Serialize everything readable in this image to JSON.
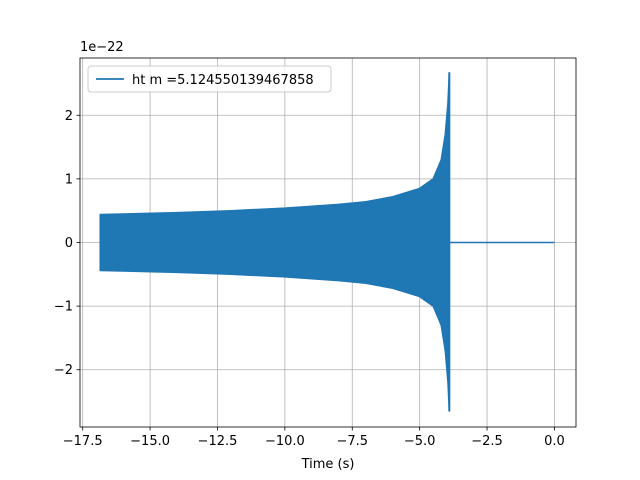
{
  "chart_data": {
    "type": "line",
    "title": "",
    "xlabel": "Time (s)",
    "ylabel": "",
    "y_offset_label": "1e−22",
    "xlim": [
      -17.6,
      0.8
    ],
    "ylim": [
      -2.9,
      2.9
    ],
    "x_ticks": [
      -17.5,
      -15.0,
      -12.5,
      -10.0,
      -7.5,
      -5.0,
      -2.5,
      0.0
    ],
    "x_tick_labels": [
      "−17.5",
      "−15.0",
      "−12.5",
      "−10.0",
      "−7.5",
      "−5.0",
      "−2.5",
      "0.0"
    ],
    "y_ticks": [
      -2,
      -1,
      0,
      1,
      2
    ],
    "y_tick_labels": [
      "−2",
      "−1",
      "0",
      "1",
      "2"
    ],
    "grid": true,
    "legend_position": "top-left",
    "series": [
      {
        "name": "ht m =5.124550139467858",
        "color": "#1f77b4",
        "segments": {
          "start_time": -16.85,
          "merger_time": -3.9,
          "end_time": 0.0,
          "envelope": [
            [
              -16.85,
              0.44
            ],
            [
              -14.0,
              0.47
            ],
            [
              -12.0,
              0.5
            ],
            [
              -10.0,
              0.54
            ],
            [
              -8.0,
              0.6
            ],
            [
              -7.0,
              0.64
            ],
            [
              -6.0,
              0.72
            ],
            [
              -5.0,
              0.85
            ],
            [
              -4.5,
              1.0
            ],
            [
              -4.2,
              1.3
            ],
            [
              -4.05,
              1.7
            ],
            [
              -3.95,
              2.2
            ],
            [
              -3.9,
              2.67
            ]
          ],
          "min_peak": -2.65,
          "post_merger_value": 0.0
        }
      }
    ]
  }
}
